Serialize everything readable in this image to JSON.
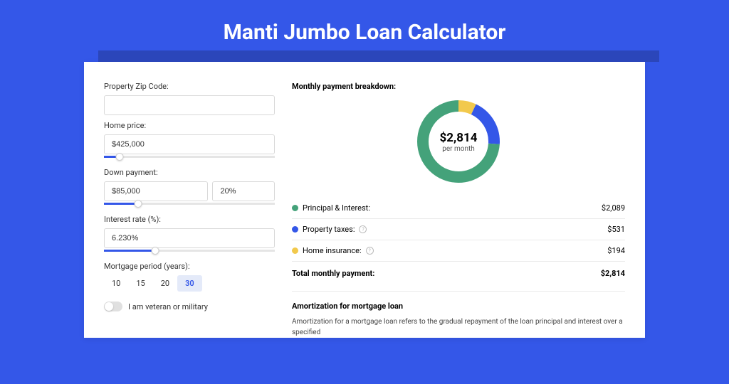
{
  "page": {
    "title": "Manti Jumbo Loan Calculator"
  },
  "colors": {
    "page_bg": "#3457e8",
    "card_bg": "#ffffff",
    "accent": "#3457e8",
    "principal": "#44a27a",
    "taxes": "#3457e8",
    "insurance": "#f2c94c",
    "divider": "#eaeaea"
  },
  "inputs": {
    "zip": {
      "label": "Property Zip Code:",
      "value": ""
    },
    "home_price": {
      "label": "Home price:",
      "value": "$425,000",
      "slider_pct": 9
    },
    "down_payment": {
      "label": "Down payment:",
      "amount": "$85,000",
      "pct": "20%",
      "slider_pct": 20
    },
    "interest_rate": {
      "label": "Interest rate (%):",
      "value": "6.230%",
      "slider_pct": 30
    },
    "mortgage_period": {
      "label": "Mortgage period (years):",
      "options": [
        "10",
        "15",
        "20",
        "30"
      ],
      "selected": "30"
    },
    "veteran": {
      "label": "I am veteran or military",
      "value": false
    }
  },
  "breakdown": {
    "title": "Monthly payment breakdown:",
    "center_amount": "$2,814",
    "center_sub": "per month",
    "items": [
      {
        "label": "Principal & Interest:",
        "value": "$2,089",
        "color": "#44a27a",
        "info": false,
        "pct": 74
      },
      {
        "label": "Property taxes:",
        "value": "$531",
        "color": "#3457e8",
        "info": true,
        "pct": 19
      },
      {
        "label": "Home insurance:",
        "value": "$194",
        "color": "#f2c94c",
        "info": true,
        "pct": 7
      }
    ],
    "total": {
      "label": "Total monthly payment:",
      "value": "$2,814"
    }
  },
  "amortization": {
    "title": "Amortization for mortgage loan",
    "text": "Amortization for a mortgage loan refers to the gradual repayment of the loan principal and interest over a specified"
  },
  "donut": {
    "radius": 50,
    "stroke_width": 16,
    "segments": [
      {
        "color": "#f2c94c",
        "pct": 7
      },
      {
        "color": "#3457e8",
        "pct": 19
      },
      {
        "color": "#44a27a",
        "pct": 74
      }
    ]
  }
}
